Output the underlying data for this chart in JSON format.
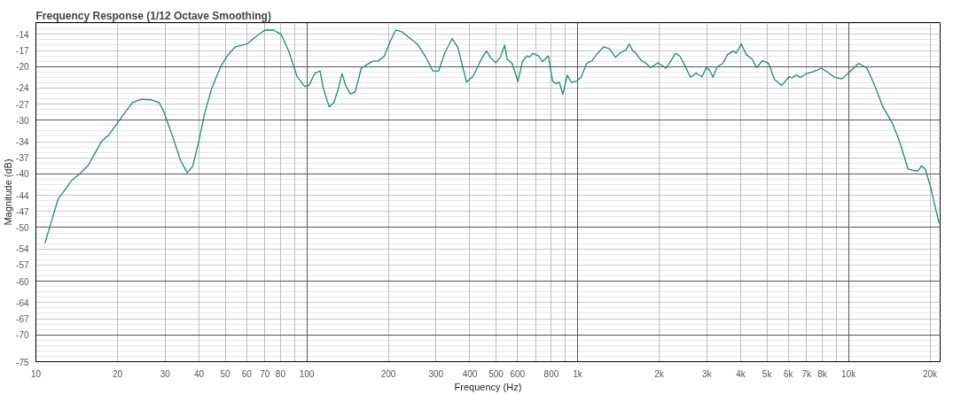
{
  "chart_data": {
    "type": "line",
    "title": "Frequency Response (1/12 Octave Smoothing)",
    "xlabel": "Frequency (Hz)",
    "ylabel": "Magnitude (dB)",
    "log": "x",
    "grid": true,
    "xlim": [
      10,
      21800
    ],
    "ylim": [
      -75,
      -11.8
    ],
    "xticks": [
      10,
      20,
      30,
      40,
      50,
      60,
      70,
      80,
      {
        "value": 90,
        "label": null
      },
      100,
      200,
      300,
      400,
      500,
      600,
      {
        "value": 700,
        "label": null
      },
      800,
      {
        "value": 900,
        "label": null
      },
      {
        "value": 1000,
        "label": "1k"
      },
      {
        "value": 2000,
        "label": "2k"
      },
      {
        "value": 3000,
        "label": "3k"
      },
      {
        "value": 4000,
        "label": "4k"
      },
      {
        "value": 5000,
        "label": "5k"
      },
      {
        "value": 6000,
        "label": "6k"
      },
      {
        "value": 7000,
        "label": "7k"
      },
      {
        "value": 8000,
        "label": "8k"
      },
      {
        "value": 9000,
        "label": null
      },
      {
        "value": 10000,
        "label": "10k"
      },
      {
        "value": 20000,
        "label": "20k"
      }
    ],
    "yticks": [
      -14,
      -17,
      -20,
      -24,
      -27,
      -30,
      -34,
      -37,
      -40,
      -44,
      -47,
      -50,
      -54,
      -57,
      -60,
      -64,
      -67,
      -70,
      -75
    ],
    "x": [
      10.8,
      11.4,
      12.1,
      12.8,
      13.5,
      14.5,
      15.6,
      16.5,
      17.5,
      18.6,
      20.0,
      21.1,
      22.7,
      24.5,
      26.7,
      28.5,
      29.5,
      31.8,
      34.2,
      36.2,
      37.9,
      39.8,
      41.9,
      44.6,
      48.1,
      51.2,
      54.5,
      60.2,
      64.2,
      70.0,
      75.5,
      80.4,
      85.6,
      92.2,
      98.2,
      102,
      107,
      112,
      115,
      121,
      126,
      131,
      135,
      139,
      145,
      151,
      159,
      166,
      175,
      183,
      193,
      203,
      213,
      224,
      239,
      257,
      274,
      292,
      307,
      323,
      344,
      361,
      389,
      409,
      419,
      441,
      461,
      477,
      499,
      518,
      538,
      549,
      573,
      602,
      625,
      649,
      666,
      683,
      718,
      742,
      780,
      808,
      835,
      856,
      882,
      916,
      946,
      995,
      1030,
      1080,
      1130,
      1190,
      1250,
      1310,
      1380,
      1430,
      1510,
      1550,
      1600,
      1640,
      1720,
      1790,
      1860,
      1980,
      2050,
      2120,
      2210,
      2300,
      2390,
      2510,
      2610,
      2740,
      2880,
      2990,
      3080,
      3160,
      3270,
      3440,
      3570,
      3750,
      3850,
      4020,
      4200,
      4410,
      4580,
      4820,
      5070,
      5330,
      5670,
      6040,
      6180,
      6420,
      6660,
      7000,
      7460,
      7940,
      8350,
      8890,
      9460,
      10100,
      10900,
      11700,
      12500,
      13400,
      14500,
      15400,
      16000,
      16600,
      17500,
      18100,
      18600,
      19200,
      20100,
      20800,
      21600
    ],
    "series": [
      {
        "color": "#1f8a70",
        "values": [
          -52.9,
          -48.9,
          -44.6,
          -43.0,
          -41.3,
          -40.0,
          -38.4,
          -36.2,
          -33.9,
          -32.7,
          -30.5,
          -28.9,
          -26.7,
          -26.1,
          -26.2,
          -26.7,
          -28.1,
          -32.7,
          -37.5,
          -39.8,
          -38.6,
          -34.3,
          -28.9,
          -24.0,
          -20.0,
          -17.8,
          -16.3,
          -15.8,
          -14.6,
          -13.2,
          -13.2,
          -14.0,
          -17.0,
          -21.9,
          -23.7,
          -23.5,
          -21.3,
          -20.8,
          -24.0,
          -27.5,
          -26.7,
          -24.0,
          -21.3,
          -23.5,
          -25.1,
          -24.7,
          -20.3,
          -19.7,
          -19.0,
          -19.0,
          -18.1,
          -15.4,
          -13.2,
          -13.5,
          -14.6,
          -15.9,
          -18.1,
          -20.8,
          -20.8,
          -17.5,
          -14.8,
          -16.4,
          -22.9,
          -21.9,
          -21.0,
          -18.6,
          -17.1,
          -18.3,
          -19.3,
          -18.3,
          -16.0,
          -18.6,
          -19.4,
          -22.8,
          -19.1,
          -18.0,
          -18.2,
          -17.5,
          -18.0,
          -19.1,
          -18.0,
          -22.7,
          -23.2,
          -22.9,
          -25.2,
          -21.6,
          -22.9,
          -22.7,
          -22.0,
          -19.4,
          -18.9,
          -17.4,
          -16.3,
          -16.7,
          -18.3,
          -17.5,
          -16.9,
          -15.8,
          -17.1,
          -17.5,
          -18.9,
          -19.4,
          -20.2,
          -19.3,
          -19.8,
          -20.3,
          -18.9,
          -17.5,
          -18.1,
          -20.2,
          -22.0,
          -21.2,
          -21.9,
          -20.1,
          -20.8,
          -22.0,
          -20.1,
          -19.4,
          -17.8,
          -17.1,
          -17.5,
          -15.8,
          -17.8,
          -18.6,
          -20.2,
          -18.9,
          -19.4,
          -22.4,
          -23.5,
          -21.9,
          -22.1,
          -21.6,
          -22.0,
          -21.3,
          -20.9,
          -20.3,
          -21.0,
          -22.0,
          -22.3,
          -21.0,
          -19.4,
          -20.3,
          -23.5,
          -27.5,
          -30.5,
          -33.8,
          -36.5,
          -39.1,
          -39.4,
          -39.4,
          -38.5,
          -39.1,
          -42.4,
          -45.7,
          -49.2
        ]
      }
    ]
  }
}
